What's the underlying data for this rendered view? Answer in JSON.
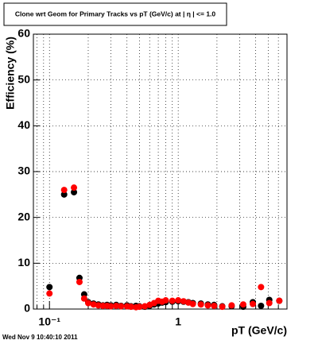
{
  "chart_data": {
    "type": "scatter",
    "title": "Clone wrt Geom for Primary Tracks vs pT (GeV/c) at | η | <= 1.0",
    "x_label": "pT (GeV/c)",
    "y_label": "Efficiency (%)",
    "footer": "Wed Nov  9 10:40:10 2011",
    "x_log": true,
    "grid": true,
    "xlim": [
      0.075,
      7
    ],
    "ylim": [
      0,
      60
    ],
    "xticks": [
      {
        "value": 0.1,
        "label": "10⁻¹"
      },
      1
    ],
    "xminorticks": [
      0.08,
      0.09,
      0.2,
      0.3,
      0.4,
      0.5,
      0.6,
      0.7,
      0.8,
      0.9,
      2,
      3,
      4,
      5,
      6
    ],
    "yticks": [
      0,
      10,
      20,
      30,
      40,
      50,
      60
    ],
    "x": [
      0.1,
      0.13,
      0.155,
      0.171,
      0.186,
      0.2,
      0.22,
      0.24,
      0.26,
      0.28,
      0.3,
      0.33,
      0.36,
      0.4,
      0.43,
      0.47,
      0.5,
      0.55,
      0.6,
      0.65,
      0.7,
      0.75,
      0.8,
      0.9,
      1.0,
      1.1,
      1.2,
      1.3,
      1.5,
      1.7,
      1.9,
      2.2,
      2.6,
      3.2,
      3.8,
      4.4,
      5.1,
      6.1
    ],
    "series": [
      {
        "color": "#000000",
        "values": [
          4.8,
          25,
          25.5,
          6.8,
          3.2,
          1.5,
          1.2,
          1.0,
          0.8,
          0.9,
          0.8,
          0.9,
          0.7,
          0.8,
          0.6,
          0.7,
          0.6,
          0.5,
          0.7,
          1.0,
          1.2,
          1.4,
          1.5,
          1.6,
          1.7,
          1.6,
          1.5,
          1.3,
          1.2,
          1.0,
          0.9,
          0.6,
          0.6,
          0.5,
          1.5,
          0.7,
          2.0,
          1.8
        ]
      },
      {
        "color": "#ff0000",
        "values": [
          3.4,
          26,
          26.5,
          5.9,
          2.3,
          1.3,
          1.0,
          0.8,
          0.7,
          0.7,
          0.6,
          0.7,
          0.6,
          0.6,
          0.5,
          0.4,
          0.5,
          0.6,
          0.9,
          1.3,
          1.8,
          1.6,
          1.9,
          1.8,
          1.9,
          1.7,
          1.4,
          1.1,
          1.0,
          0.8,
          0.7,
          0.5,
          0.8,
          1.0,
          1.1,
          4.8,
          1.3,
          1.8
        ]
      }
    ]
  }
}
